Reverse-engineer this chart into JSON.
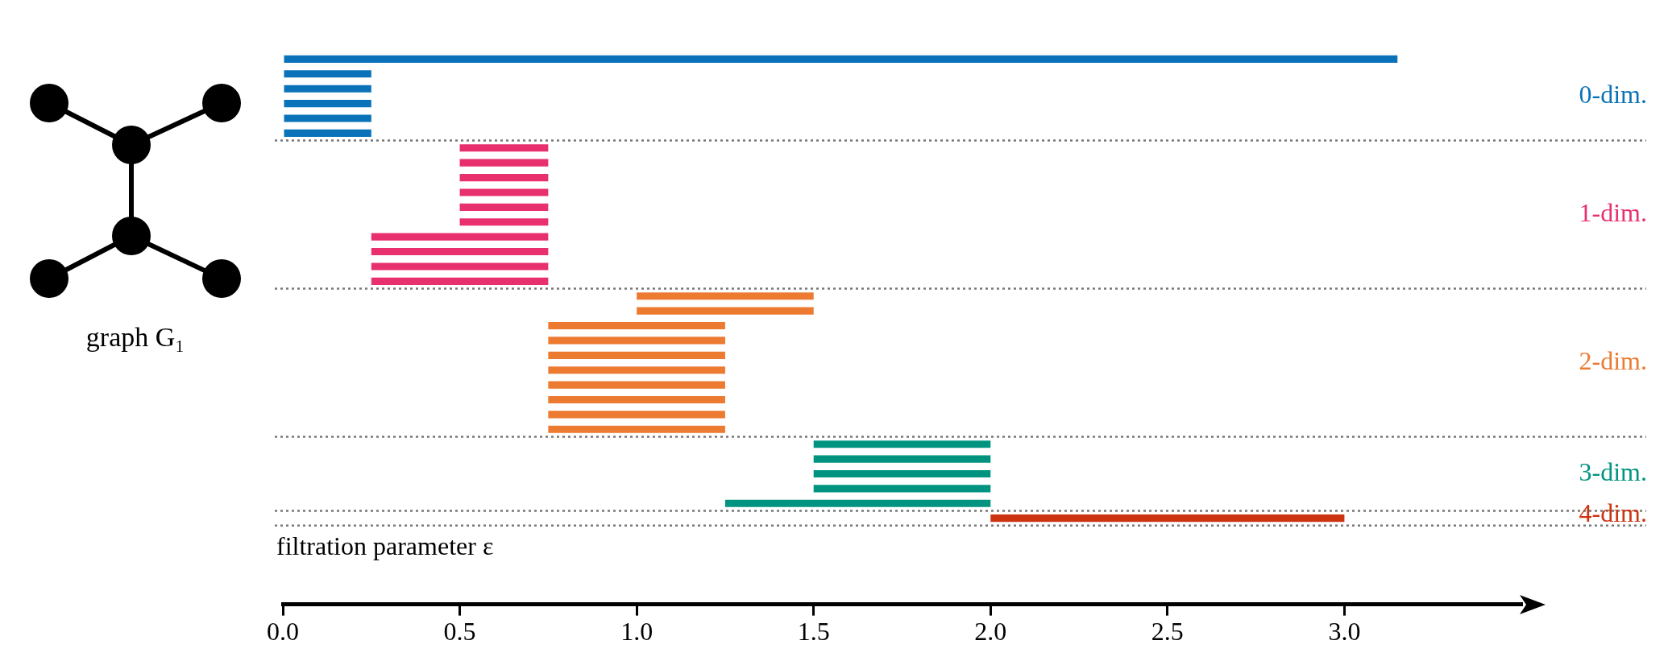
{
  "chart_data": {
    "type": "bar",
    "orientation": "horizontal",
    "xlabel": "filtration parameter ε",
    "annotations": [
      "graph G₁",
      "0-dim.",
      "1-dim.",
      "2-dim.",
      "3-dim.",
      "4-dim."
    ],
    "categories": [
      null,
      null,
      null,
      null,
      null,
      null,
      null,
      null,
      null,
      null,
      null,
      null,
      null,
      null,
      null,
      null,
      null,
      null,
      null,
      null,
      null,
      null,
      null,
      null,
      null,
      null,
      null,
      null,
      null,
      null,
      null,
      null
    ],
    "values": [
      3.15,
      0.25,
      0.25,
      0.25,
      0.25,
      0.25,
      0.25,
      0.25,
      0.25,
      0.25,
      0.25,
      0.25,
      0.5,
      0.5,
      0.5,
      0.5,
      0.5,
      0.5,
      0.5,
      0.5,
      0.5,
      0.5,
      0.5,
      0.5,
      0.5,
      0.5,
      0.5,
      0.5,
      0.5,
      0.5,
      0.75,
      1.0
    ],
    "base": [
      0,
      0,
      0,
      0,
      0,
      0,
      0.5,
      0.5,
      0.5,
      0.5,
      0.5,
      0.5,
      0.25,
      0.25,
      0.25,
      0.25,
      1.0,
      1.0,
      0.75,
      0.75,
      0.75,
      0.75,
      0.75,
      0.75,
      0.75,
      0.75,
      1.5,
      1.5,
      1.5,
      1.5,
      1.25,
      2.0
    ],
    "colors": [
      "#0a72b8",
      "#0a72b8",
      "#0a72b8",
      "#0a72b8",
      "#0a72b8",
      "#0a72b8",
      "#e8306f",
      "#e8306f",
      "#e8306f",
      "#e8306f",
      "#e8306f",
      "#e8306f",
      "#e8306f",
      "#e8306f",
      "#e8306f",
      "#e8306f",
      "#ec7a30",
      "#ec7a30",
      "#ec7a30",
      "#ec7a30",
      "#ec7a30",
      "#ec7a30",
      "#ec7a30",
      "#ec7a30",
      "#ec7a30",
      "#ec7a30",
      "#009480",
      "#009480",
      "#009480",
      "#009480",
      "#009480",
      "#cc3311"
    ],
    "xlim": [
      0,
      3.5
    ],
    "xticks": [
      {
        "value": 0,
        "label": "0.0"
      },
      {
        "value": 0.5,
        "label": "0.5"
      },
      {
        "value": 1,
        "label": "1.0"
      },
      {
        "value": 1.5,
        "label": "1.5"
      },
      {
        "value": 2,
        "label": "2.0"
      },
      {
        "value": 2.5,
        "label": "2.5"
      },
      {
        "value": 3,
        "label": "3.0"
      }
    ],
    "grid": false
  }
}
